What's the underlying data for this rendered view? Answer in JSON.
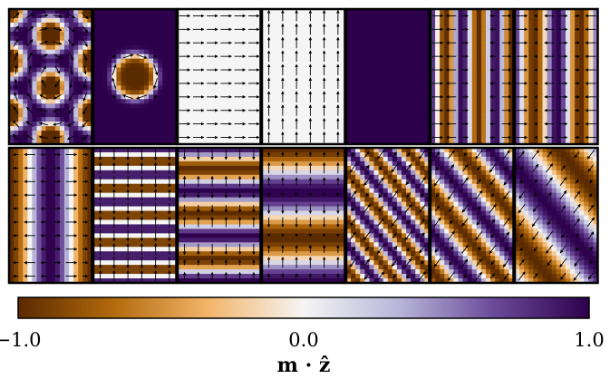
{
  "chart_data": {
    "type": "heatmap",
    "description_grid": "2 rows x 7 columns of magnetization-texture panels, colored by m·z with arrows for in-plane magnetization",
    "colormap": [
      "#5a2a00",
      "#b36a0c",
      "#f2b56a",
      "#f5f5f5",
      "#b8b6d8",
      "#6b4a9a",
      "#2d004b"
    ],
    "colorbar": {
      "vmin": -1.0,
      "vmax": 1.0,
      "ticks": [
        -1.0,
        0.0,
        1.0
      ],
      "tick_labels": [
        "−1.0",
        "0.0",
        "1.0"
      ],
      "label": "m · ẑ"
    },
    "panels": [
      {
        "row": 0,
        "col": 0,
        "pattern": "hexagonal_skyrmion_lattice"
      },
      {
        "row": 0,
        "col": 1,
        "pattern": "single_skyrmion"
      },
      {
        "row": 0,
        "col": 2,
        "pattern": "uniform_inplane_x"
      },
      {
        "row": 0,
        "col": 3,
        "pattern": "uniform_inplane_y"
      },
      {
        "row": 0,
        "col": 4,
        "pattern": "uniform_out_of_plane"
      },
      {
        "row": 0,
        "col": 5,
        "pattern": "vertical_helix_short_period"
      },
      {
        "row": 0,
        "col": 6,
        "pattern": "vertical_helix_long_period"
      },
      {
        "row": 1,
        "col": 0,
        "pattern": "vertical_helix_single"
      },
      {
        "row": 1,
        "col": 1,
        "pattern": "horizontal_helix_short_period"
      },
      {
        "row": 1,
        "col": 2,
        "pattern": "horizontal_helix_medium_period"
      },
      {
        "row": 1,
        "col": 3,
        "pattern": "horizontal_helix_long_period"
      },
      {
        "row": 1,
        "col": 4,
        "pattern": "diagonal_helix_short_period"
      },
      {
        "row": 1,
        "col": 5,
        "pattern": "diagonal_helix_medium_period"
      },
      {
        "row": 1,
        "col": 6,
        "pattern": "diagonal_helix_long_period"
      }
    ]
  }
}
